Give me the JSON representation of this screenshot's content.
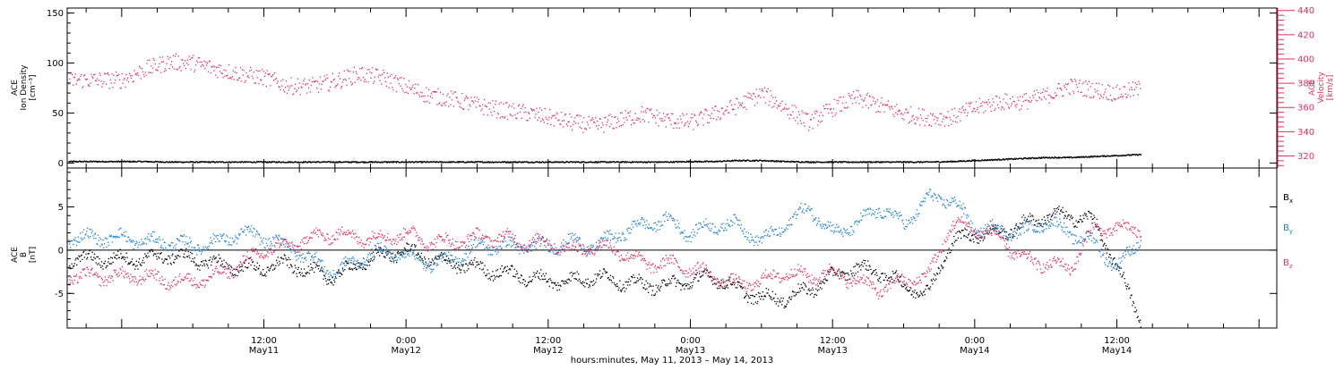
{
  "colors": {
    "axis": "#000000",
    "density": "#000000",
    "velocity": "#e0305f",
    "bx": "#000000",
    "by": "#1e7fd6",
    "bz": "#e0305f"
  },
  "chart_data": [
    {
      "id": "density-velocity",
      "type": "scatter",
      "left_axis": {
        "label_lines": [
          "ACE",
          "Ion Density",
          "[cm⁻³]"
        ],
        "ylim": [
          -5,
          155
        ],
        "ticks": [
          0,
          50,
          100,
          150
        ],
        "color": "#000000"
      },
      "right_axis": {
        "label_lines": [
          "ACE",
          "Velocity",
          "[km/s]"
        ],
        "ylim": [
          310,
          442
        ],
        "ticks": [
          320,
          340,
          360,
          380,
          400,
          420,
          440
        ],
        "color": "#e0305f"
      },
      "series": [
        {
          "id": "ion_density",
          "axis": "left",
          "color": "#000000",
          "x": [
            0,
            2,
            4,
            6,
            8,
            10,
            12,
            14,
            16,
            18,
            20,
            22,
            24,
            26,
            28,
            30,
            32,
            34,
            36,
            38,
            40,
            42,
            44,
            46,
            48,
            50,
            52,
            54,
            56,
            58,
            60,
            62,
            64,
            66,
            68,
            70,
            72,
            74,
            76,
            78,
            80,
            82,
            84,
            86
          ],
          "values": [
            2,
            2,
            1.5,
            1.5,
            1.5,
            1.5,
            1.5,
            1.5,
            1.5,
            1.5,
            1.5,
            1.5,
            1.5,
            1.5,
            1.5,
            1.5,
            1.5,
            1.5,
            1.5,
            1.5,
            1.5,
            1.5,
            1.5,
            1.5,
            2,
            2,
            3,
            3,
            2,
            1.5,
            1.5,
            1.5,
            1.5,
            1.5,
            1.5,
            2,
            3,
            4,
            5,
            6,
            6,
            7,
            8,
            9
          ]
        },
        {
          "id": "velocity",
          "axis": "right",
          "color": "#e0305f",
          "x": [
            0,
            2,
            4,
            6,
            8,
            10,
            12,
            14,
            16,
            18,
            20,
            22,
            24,
            26,
            28,
            30,
            32,
            34,
            36,
            38,
            40,
            42,
            44,
            46,
            48,
            50,
            52,
            54,
            56,
            58,
            60,
            62,
            64,
            66,
            68,
            70,
            72,
            74,
            76,
            78,
            80,
            82,
            84,
            86
          ],
          "values": [
            383,
            392,
            398,
            397,
            392,
            388,
            385,
            378,
            378,
            382,
            388,
            385,
            377,
            370,
            367,
            362,
            358,
            356,
            352,
            348,
            345,
            350,
            355,
            350,
            348,
            355,
            362,
            372,
            360,
            348,
            360,
            368,
            362,
            355,
            352,
            352,
            360,
            365,
            365,
            370,
            378,
            375,
            372,
            376
          ]
        }
      ]
    },
    {
      "id": "imf",
      "type": "scatter",
      "left_axis": {
        "label_lines": [
          "ACE",
          "B",
          "[nT]"
        ],
        "ylim": [
          -9,
          9.5
        ],
        "ticks": [
          -5,
          0,
          5
        ],
        "color": "#000000"
      },
      "zero_line": true,
      "series": [
        {
          "name": "Bx",
          "label_main": "B",
          "label_sub": "x",
          "color": "#000000",
          "x": [
            0,
            2,
            4,
            6,
            8,
            10,
            12,
            14,
            16,
            18,
            20,
            22,
            24,
            26,
            28,
            30,
            32,
            34,
            36,
            38,
            40,
            42,
            44,
            46,
            48,
            50,
            52,
            54,
            56,
            58,
            60,
            62,
            64,
            66,
            68,
            70,
            72,
            74,
            76,
            78,
            80,
            82,
            84,
            86
          ],
          "values": [
            -1,
            -1,
            -0.5,
            -1,
            -1.5,
            -2,
            -2,
            -1.5,
            -2.5,
            -3,
            -1.5,
            -0.5,
            0,
            -1,
            -1.5,
            -2,
            -2.5,
            -3,
            -3.5,
            -3.5,
            -3,
            -3.5,
            -4,
            -4,
            -3.5,
            -3,
            -4.5,
            -5.5,
            -5.5,
            -4.5,
            -3,
            -2,
            -2.5,
            -4,
            -5,
            1,
            2,
            2,
            3,
            4,
            4,
            3.5,
            -2,
            -8
          ]
        },
        {
          "name": "By",
          "label_main": "B",
          "label_sub": "y",
          "color": "#1e7fd6",
          "x": [
            0,
            2,
            4,
            6,
            8,
            10,
            12,
            14,
            16,
            18,
            20,
            22,
            24,
            26,
            28,
            30,
            32,
            34,
            36,
            38,
            40,
            42,
            44,
            46,
            48,
            50,
            52,
            54,
            56,
            58,
            60,
            62,
            64,
            66,
            68,
            70,
            72,
            74,
            76,
            78,
            80,
            82,
            84,
            86
          ],
          "values": [
            1.5,
            1,
            1,
            0.5,
            1,
            2,
            1.5,
            0.5,
            -1,
            -2.5,
            -1,
            0,
            -0.5,
            -1.5,
            -1,
            0.5,
            0.5,
            0.5,
            0.5,
            1,
            0.5,
            2,
            3,
            3.5,
            2,
            3,
            3,
            1,
            3,
            5,
            2,
            3,
            5,
            3,
            6,
            6,
            2.5,
            2.5,
            2,
            3.5,
            2,
            1,
            -2,
            1.5
          ]
        },
        {
          "name": "Bz",
          "label_main": "B",
          "label_sub": "z",
          "color": "#e0305f",
          "x": [
            0,
            2,
            4,
            6,
            8,
            10,
            12,
            14,
            16,
            18,
            20,
            22,
            24,
            26,
            28,
            30,
            32,
            34,
            36,
            38,
            40,
            42,
            44,
            46,
            48,
            50,
            52,
            54,
            56,
            58,
            60,
            62,
            64,
            66,
            68,
            70,
            72,
            74,
            76,
            78,
            80,
            82,
            84,
            86
          ],
          "values": [
            -3,
            -3,
            -3.5,
            -3.5,
            -3,
            -1.5,
            0,
            0.5,
            1.5,
            2,
            1.5,
            1.5,
            2,
            1,
            1,
            1.5,
            1.5,
            1,
            1,
            0,
            0.5,
            0,
            -1.5,
            -1.5,
            -2,
            -3,
            -4,
            -3.5,
            -2.5,
            -3,
            -2.5,
            -3.5,
            -4.5,
            -3.5,
            -3,
            3,
            2.5,
            1.5,
            -1,
            -1.5,
            -2,
            2.5,
            2.5,
            2.5
          ]
        }
      ]
    }
  ],
  "x_axis": {
    "range_hours": [
      -4.6,
      97.5
    ],
    "major_ticks": [
      {
        "hour": 12,
        "time": "12:00",
        "date": "May11"
      },
      {
        "hour": 24,
        "time": "0:00",
        "date": "May12"
      },
      {
        "hour": 36,
        "time": "12:00",
        "date": "May12"
      },
      {
        "hour": 48,
        "time": "0:00",
        "date": "May13"
      },
      {
        "hour": 60,
        "time": "12:00",
        "date": "May13"
      },
      {
        "hour": 72,
        "time": "0:00",
        "date": "May14"
      },
      {
        "hour": 84,
        "time": "12:00",
        "date": "May14"
      }
    ],
    "minor_step_hours": 3,
    "xlabel": "hours:minutes, May 11, 2013 – May 14, 2013"
  }
}
